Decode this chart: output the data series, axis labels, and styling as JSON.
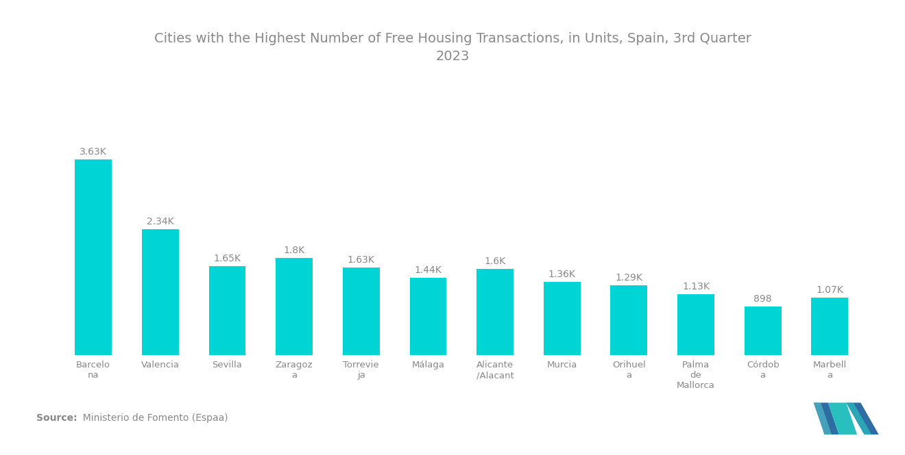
{
  "title": "Cities with the Highest Number of Free Housing Transactions, in Units, Spain, 3rd Quarter\n2023",
  "categories": [
    "Barcelo\nna",
    "Valencia",
    "Sevilla",
    "Zaragoz\na",
    "Torrevie\nja",
    "Málaga",
    "Alicante\n/Alacant",
    "Murcia",
    "Orihuel\na",
    "Palma\nde\nMallorca",
    "Córdob\na",
    "Marbell\na"
  ],
  "values": [
    3630,
    2340,
    1650,
    1800,
    1630,
    1440,
    1600,
    1360,
    1290,
    1130,
    898,
    1070
  ],
  "labels": [
    "3.63K",
    "2.34K",
    "1.65K",
    "1.8K",
    "1.63K",
    "1.44K",
    "1.6K",
    "1.36K",
    "1.29K",
    "1.13K",
    "898",
    "1.07K"
  ],
  "bar_color": "#00D4D4",
  "background_color": "#ffffff",
  "source_bold": "Source:",
  "source_rest": "  Ministerio de Fomento (Espaa)",
  "title_color": "#888888",
  "label_color": "#888888",
  "tick_color": "#888888",
  "source_color": "#888888",
  "ylim": [
    0,
    4400
  ],
  "title_fontsize": 14,
  "label_fontsize": 10,
  "tick_fontsize": 9.5,
  "source_fontsize": 10
}
